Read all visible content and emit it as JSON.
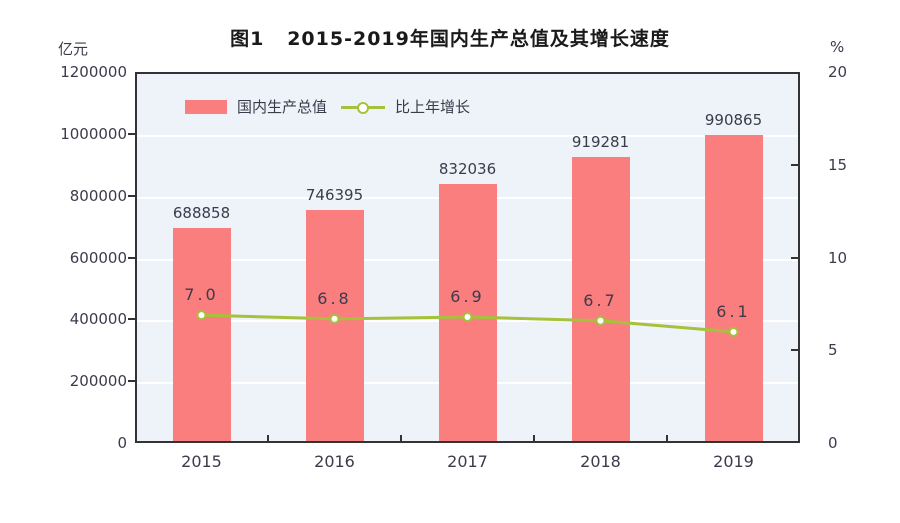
{
  "title": "图1   2015-2019年国内生产总值及其增长速度",
  "left_axis": {
    "unit": "亿元",
    "ticks": [
      0,
      200000,
      400000,
      600000,
      800000,
      1000000,
      1200000
    ],
    "min": 0,
    "max": 1200000
  },
  "right_axis": {
    "unit": "%",
    "ticks": [
      0,
      5,
      10,
      15,
      20
    ],
    "min": 0,
    "max": 20
  },
  "chart_data": {
    "type": "bar",
    "categories": [
      "2015",
      "2016",
      "2017",
      "2018",
      "2019"
    ],
    "series": [
      {
        "name": "国内生产总值",
        "type": "bar",
        "axis": "left",
        "values": [
          688858,
          746395,
          832036,
          919281,
          990865
        ]
      },
      {
        "name": "比上年增长",
        "type": "line",
        "axis": "right",
        "values": [
          7.0,
          6.8,
          6.9,
          6.7,
          6.1
        ]
      }
    ],
    "title": "图1   2015-2019年国内生产总值及其增长速度",
    "xlabel": "",
    "ylabel_left": "亿元",
    "ylabel_right": "%",
    "left_ylim": [
      0,
      1200000
    ],
    "right_ylim": [
      0,
      20
    ],
    "grid": true,
    "legend_position": "top-left-inside"
  },
  "colors": {
    "bar": "#fa7e7e",
    "line": "#a6c13c",
    "marker_fill": "#ffffff",
    "plot_bg": "#edf3f8",
    "axis": "#333333",
    "grid": "#ffffff",
    "text": "#3b3b4c",
    "title": "#1a1a1a"
  }
}
